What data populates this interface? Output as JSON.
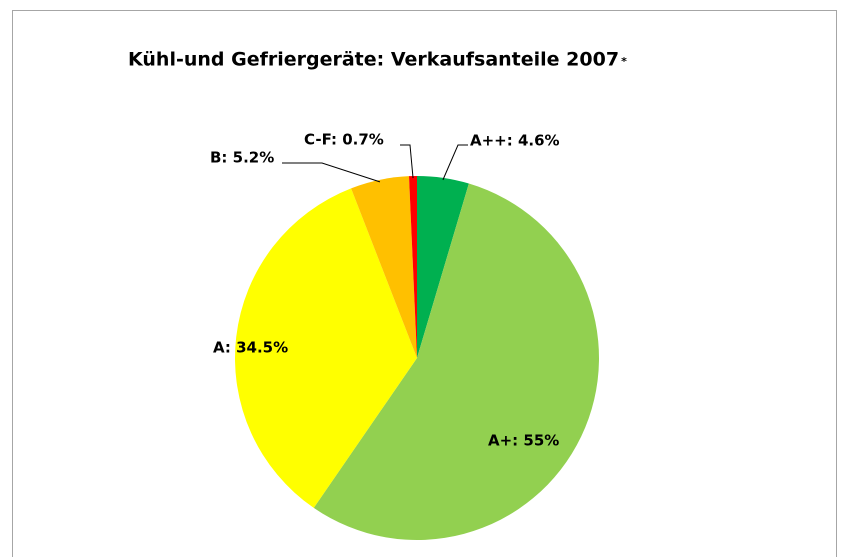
{
  "chart_data": {
    "type": "pie",
    "title": "Kühl-und Gefriergeräte: Verkaufsanteile 2007",
    "title_mark": "*",
    "labels": [
      "A++: 4.6%",
      "A+: 55%",
      "A: 34.5%",
      "B: 5.2%",
      "C-F: 0.7%"
    ],
    "values": [
      4.6,
      55,
      34.5,
      5.2,
      0.7
    ],
    "colors": [
      "#00b050",
      "#92d050",
      "#ffff00",
      "#ffc000",
      "#ff0000"
    ]
  }
}
